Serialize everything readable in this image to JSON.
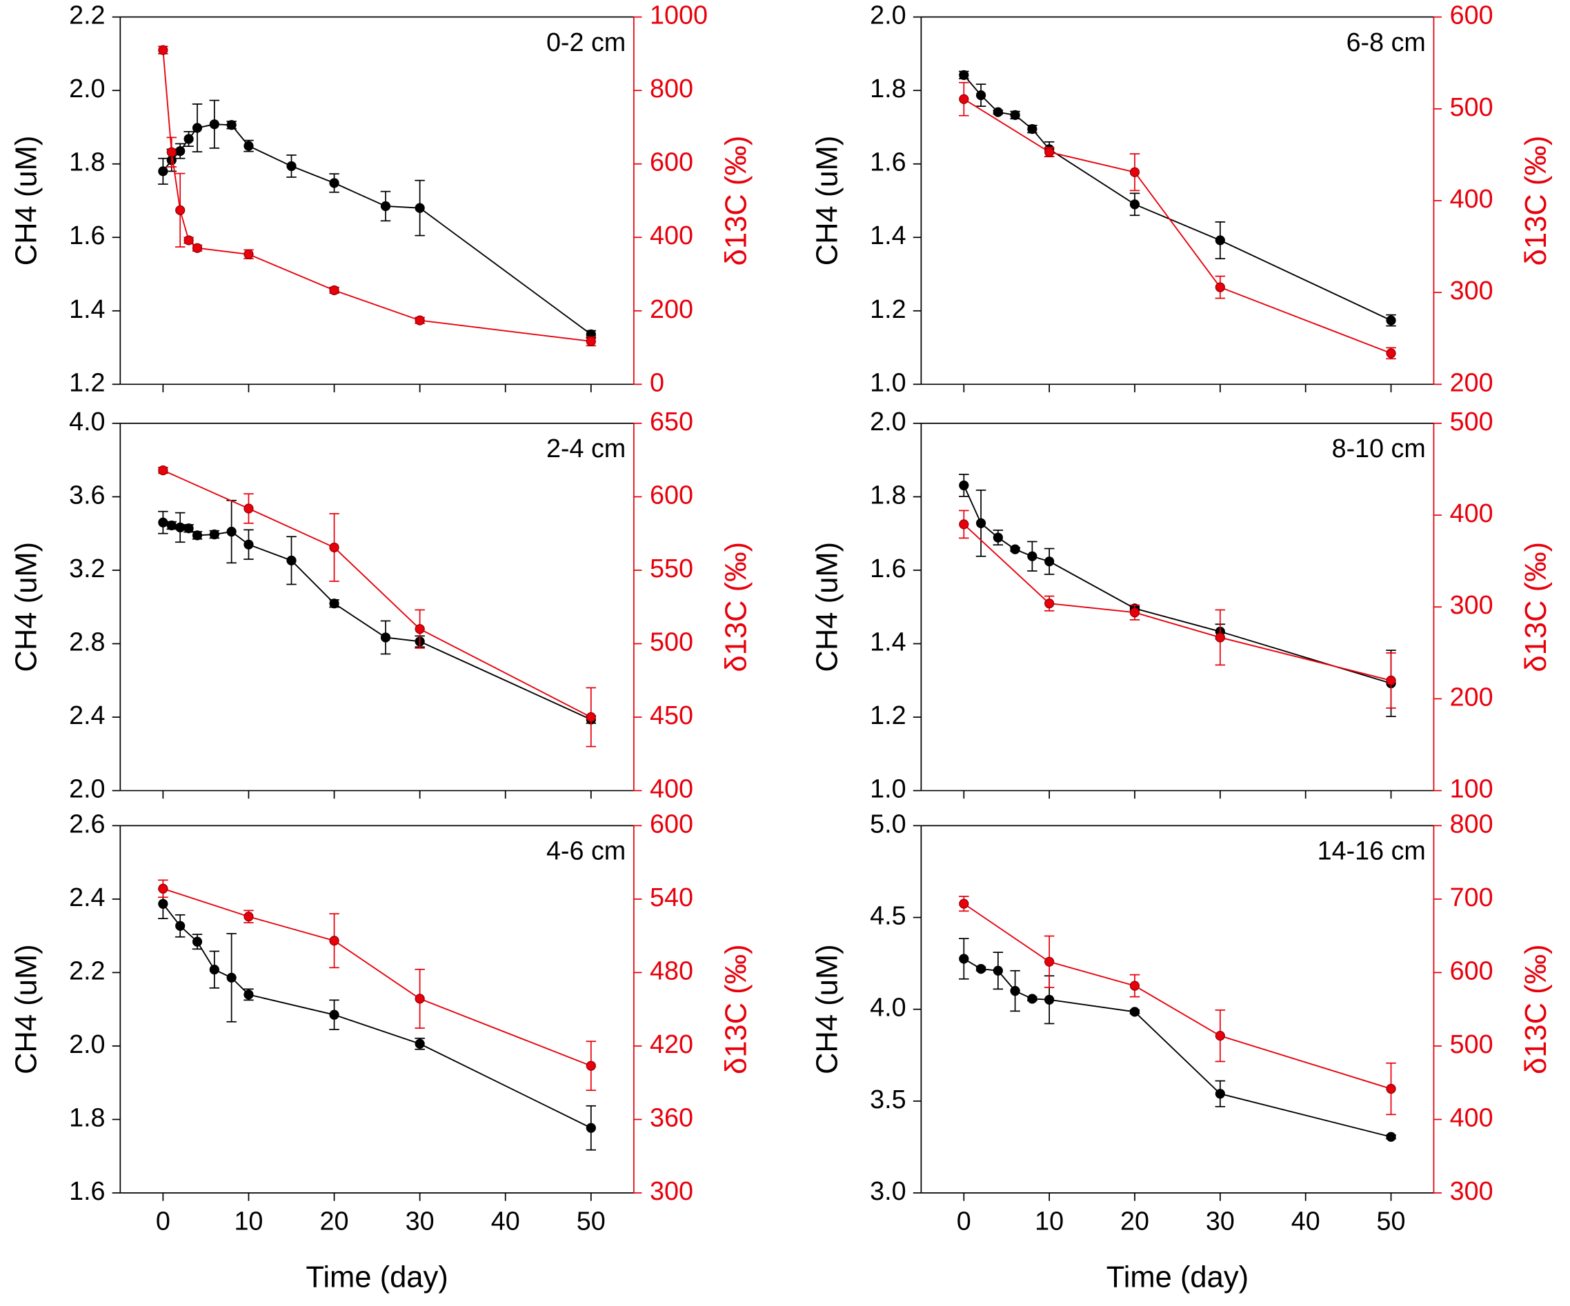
{
  "chart_data": [
    {
      "type": "line",
      "title": "0-2 cm",
      "ylabel": "CH4 (uM)",
      "y2label": "δ13C (‰)",
      "xlim": [
        -5,
        55
      ],
      "xticks": [
        0,
        10,
        20,
        30,
        40,
        50
      ],
      "ylim": [
        1.2,
        2.2
      ],
      "yticks": [
        1.2,
        1.4,
        1.6,
        1.8,
        {
          "value": 2.0,
          "label": "2.0"
        },
        2.2
      ],
      "y2lim": [
        0,
        1000
      ],
      "y2ticks": [
        0,
        200,
        400,
        600,
        800,
        1000
      ],
      "series": [
        {
          "color": "#000000",
          "axis": "y",
          "x": [
            0,
            1,
            2,
            3,
            4,
            6,
            8,
            10,
            15,
            20,
            26,
            30,
            50
          ],
          "values": [
            1.78,
            1.81,
            1.835,
            1.868,
            1.898,
            1.908,
            1.906,
            1.849,
            1.794,
            1.748,
            1.685,
            1.68,
            1.336
          ],
          "errors": [
            0.035,
            0.03,
            0.02,
            0.02,
            0.065,
            0.065,
            0.01,
            0.015,
            0.03,
            0.025,
            0.04,
            0.075,
            0.01
          ]
        },
        {
          "color": "#e8000b",
          "axis": "y2",
          "x": [
            0,
            1,
            2,
            3,
            4,
            10,
            20,
            30,
            50
          ],
          "values": [
            910,
            632,
            474,
            392,
            371,
            354,
            256,
            174,
            117
          ],
          "errors": [
            10,
            40,
            100,
            8,
            8,
            12,
            8,
            8,
            12
          ]
        }
      ]
    },
    {
      "type": "line",
      "title": "6-8 cm",
      "ylabel": "CH4 (uM)",
      "y2label": "δ13C (‰)",
      "xlim": [
        -5,
        55
      ],
      "xticks": [
        0,
        10,
        20,
        30,
        40,
        50
      ],
      "ylim": [
        1.0,
        2.0
      ],
      "yticks": [
        {
          "value": 1.0,
          "label": "1.0"
        },
        1.2,
        1.4,
        1.6,
        1.8,
        {
          "value": 2.0,
          "label": "2.0"
        }
      ],
      "y2lim": [
        200,
        600
      ],
      "y2ticks": [
        200,
        300,
        400,
        500,
        600
      ],
      "series": [
        {
          "color": "#000000",
          "axis": "y",
          "x": [
            0,
            2,
            4,
            6,
            8,
            10,
            20,
            30,
            50
          ],
          "values": [
            1.842,
            1.787,
            1.741,
            1.733,
            1.695,
            1.64,
            1.49,
            1.392,
            1.174
          ],
          "errors": [
            0.01,
            0.03,
            0.005,
            0.01,
            0.01,
            0.02,
            0.03,
            0.05,
            0.015
          ]
        },
        {
          "color": "#e8000b",
          "axis": "y2",
          "x": [
            0,
            10,
            20,
            30,
            50
          ],
          "values": [
            510.6,
            452.9,
            431,
            305.7,
            233.8
          ],
          "errors": [
            18,
            5,
            20,
            12,
            6
          ]
        }
      ]
    },
    {
      "type": "line",
      "title": "2-4 cm",
      "ylabel": "CH4 (uM)",
      "y2label": "δ13C (‰)",
      "xlim": [
        -5,
        55
      ],
      "xticks": [
        0,
        10,
        20,
        30,
        40,
        50
      ],
      "ylim": [
        2.0,
        4.0
      ],
      "yticks": [
        {
          "value": 2.0,
          "label": "2.0"
        },
        2.4,
        2.8,
        3.2,
        3.6,
        {
          "value": 4.0,
          "label": "4.0"
        }
      ],
      "y2lim": [
        400,
        650
      ],
      "y2ticks": [
        400,
        450,
        500,
        550,
        600,
        650
      ],
      "series": [
        {
          "color": "#000000",
          "axis": "y",
          "x": [
            0,
            1,
            2,
            3,
            4,
            6,
            8,
            10,
            15,
            20,
            26,
            30,
            50
          ],
          "values": [
            3.46,
            3.444,
            3.433,
            3.428,
            3.39,
            3.395,
            3.41,
            3.34,
            3.253,
            3.019,
            2.834,
            2.812,
            2.387
          ],
          "errors": [
            0.06,
            0.02,
            0.08,
            0.02,
            0.02,
            0.02,
            0.17,
            0.08,
            0.13,
            0.02,
            0.09,
            0.03,
            0.02
          ]
        },
        {
          "color": "#e8000b",
          "axis": "y2",
          "x": [
            0,
            10,
            20,
            30,
            50
          ],
          "values": [
            618,
            592,
            565.5,
            510,
            450
          ],
          "errors": [
            2,
            10,
            23,
            13,
            20
          ]
        }
      ]
    },
    {
      "type": "line",
      "title": "8-10 cm",
      "ylabel": "CH4 (uM)",
      "y2label": "δ13C (‰)",
      "xlim": [
        -5,
        55
      ],
      "xticks": [
        0,
        10,
        20,
        30,
        40,
        50
      ],
      "ylim": [
        1.0,
        2.0
      ],
      "yticks": [
        {
          "value": 1.0,
          "label": "1.0"
        },
        1.2,
        1.4,
        1.6,
        1.8,
        {
          "value": 2.0,
          "label": "2.0"
        }
      ],
      "y2lim": [
        100,
        500
      ],
      "y2ticks": [
        100,
        200,
        300,
        400,
        500
      ],
      "series": [
        {
          "color": "#000000",
          "axis": "y",
          "x": [
            0,
            2,
            4,
            6,
            8,
            10,
            20,
            30,
            50
          ],
          "values": [
            1.831,
            1.728,
            1.689,
            1.657,
            1.638,
            1.624,
            1.496,
            1.433,
            1.292
          ],
          "errors": [
            0.03,
            0.09,
            0.02,
            0.005,
            0.04,
            0.035,
            0.005,
            0.02,
            0.09
          ]
        },
        {
          "color": "#e8000b",
          "axis": "y2",
          "x": [
            0,
            10,
            20,
            30,
            50
          ],
          "values": [
            390,
            303.8,
            294,
            266.8,
            219.9
          ],
          "errors": [
            15,
            8,
            8,
            30,
            30
          ]
        }
      ]
    },
    {
      "type": "line",
      "title": "4-6 cm",
      "ylabel": "CH4 (uM)",
      "y2label": "δ13C (‰)",
      "xlabel": "Time (day)",
      "xlim": [
        -5,
        55
      ],
      "xticks": [
        0,
        10,
        20,
        30,
        40,
        50
      ],
      "ylim": [
        1.6,
        2.6
      ],
      "yticks": [
        1.6,
        1.8,
        {
          "value": 2.0,
          "label": "2.0"
        },
        2.2,
        2.4,
        2.6
      ],
      "y2lim": [
        300,
        600
      ],
      "y2ticks": [
        300,
        360,
        420,
        480,
        540,
        600
      ],
      "series": [
        {
          "color": "#000000",
          "axis": "y",
          "x": [
            0,
            2,
            4,
            6,
            8,
            10,
            20,
            30,
            50
          ],
          "values": [
            2.387,
            2.327,
            2.284,
            2.208,
            2.186,
            2.14,
            2.085,
            2.006,
            1.777
          ],
          "errors": [
            0.04,
            0.03,
            0.02,
            0.05,
            0.12,
            0.015,
            0.04,
            0.015,
            0.06
          ]
        },
        {
          "color": "#e8000b",
          "axis": "y2",
          "x": [
            0,
            10,
            20,
            30,
            50
          ],
          "values": [
            548.5,
            525.7,
            506,
            458.6,
            403.8
          ],
          "errors": [
            7,
            5,
            22,
            24,
            20
          ]
        }
      ]
    },
    {
      "type": "line",
      "title": "14-16 cm",
      "ylabel": "CH4 (uM)",
      "y2label": "δ13C (‰)",
      "xlabel": "Time (day)",
      "xlim": [
        -5,
        55
      ],
      "xticks": [
        0,
        10,
        20,
        30,
        40,
        50
      ],
      "ylim": [
        3.0,
        5.0
      ],
      "yticks": [
        {
          "value": 3.0,
          "label": "3.0"
        },
        3.5,
        {
          "value": 4.0,
          "label": "4.0"
        },
        4.5,
        {
          "value": 5.0,
          "label": "5.0"
        }
      ],
      "y2lim": [
        300,
        800
      ],
      "y2ticks": [
        300,
        400,
        500,
        600,
        700,
        800
      ],
      "series": [
        {
          "color": "#000000",
          "axis": "y",
          "x": [
            0,
            2,
            4,
            6,
            8,
            10,
            20,
            30,
            50
          ],
          "values": [
            4.275,
            4.22,
            4.21,
            4.1,
            4.057,
            4.052,
            3.986,
            3.54,
            3.305
          ],
          "errors": [
            0.11,
            0.01,
            0.1,
            0.11,
            0.01,
            0.13,
            0.01,
            0.07,
            0.01
          ]
        },
        {
          "color": "#e8000b",
          "axis": "y2",
          "x": [
            0,
            10,
            20,
            30,
            50
          ],
          "values": [
            693.7,
            614.7,
            582,
            513.9,
            441.7
          ],
          "errors": [
            10,
            35,
            15,
            35,
            35
          ]
        }
      ]
    }
  ]
}
